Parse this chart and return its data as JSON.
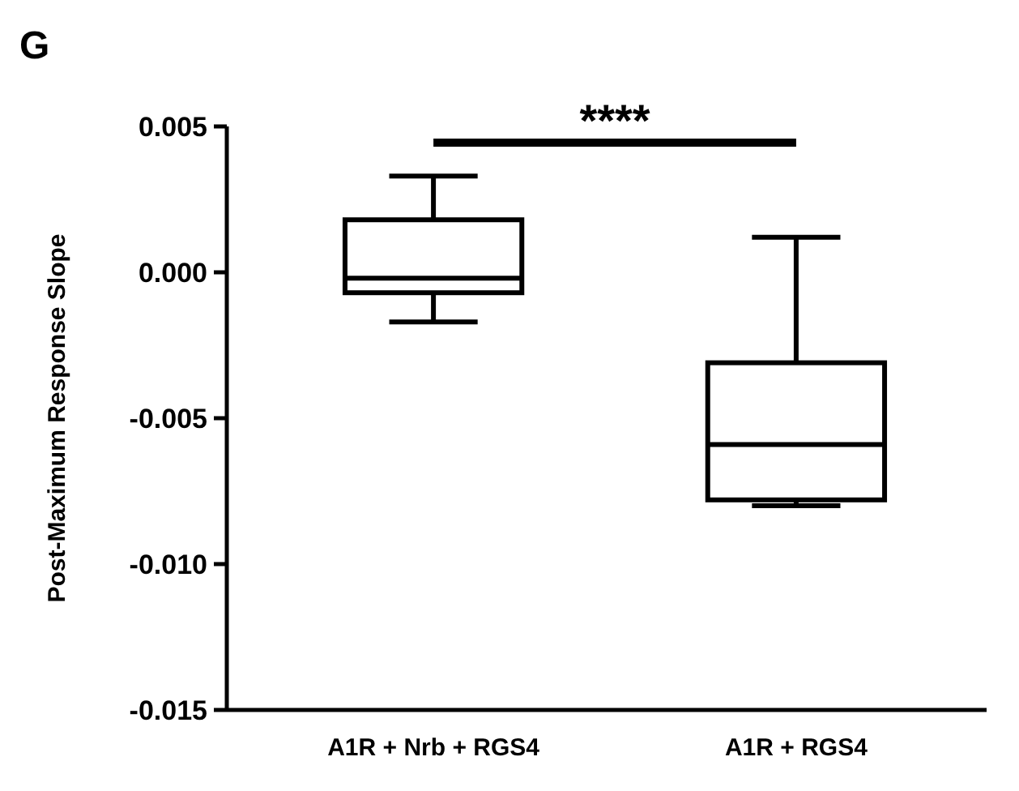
{
  "chart_data": {
    "type": "box",
    "title": "G",
    "ylabel": "Post-Maximum Response Slope",
    "categories": [
      "A1R + Nrb + RGS4",
      "A1R + RGS4"
    ],
    "boxes": [
      {
        "low": -0.0017,
        "q1": -0.0007,
        "median": -0.0002,
        "q3": 0.0018,
        "high": 0.0033
      },
      {
        "low": -0.008,
        "q1": -0.0078,
        "median": -0.0059,
        "q3": -0.0031,
        "high": 0.0012
      }
    ],
    "ylim": [
      -0.015,
      0.005
    ],
    "yticks": [
      {
        "value": 0.005,
        "label": "0.005"
      },
      {
        "value": 0,
        "label": "0.000"
      },
      {
        "value": -0.005,
        "label": "-0.005"
      },
      {
        "value": -0.01,
        "label": "-0.010"
      },
      {
        "value": -0.015,
        "label": "-0.015"
      }
    ],
    "annotations": [
      "****"
    ],
    "grid": false
  }
}
